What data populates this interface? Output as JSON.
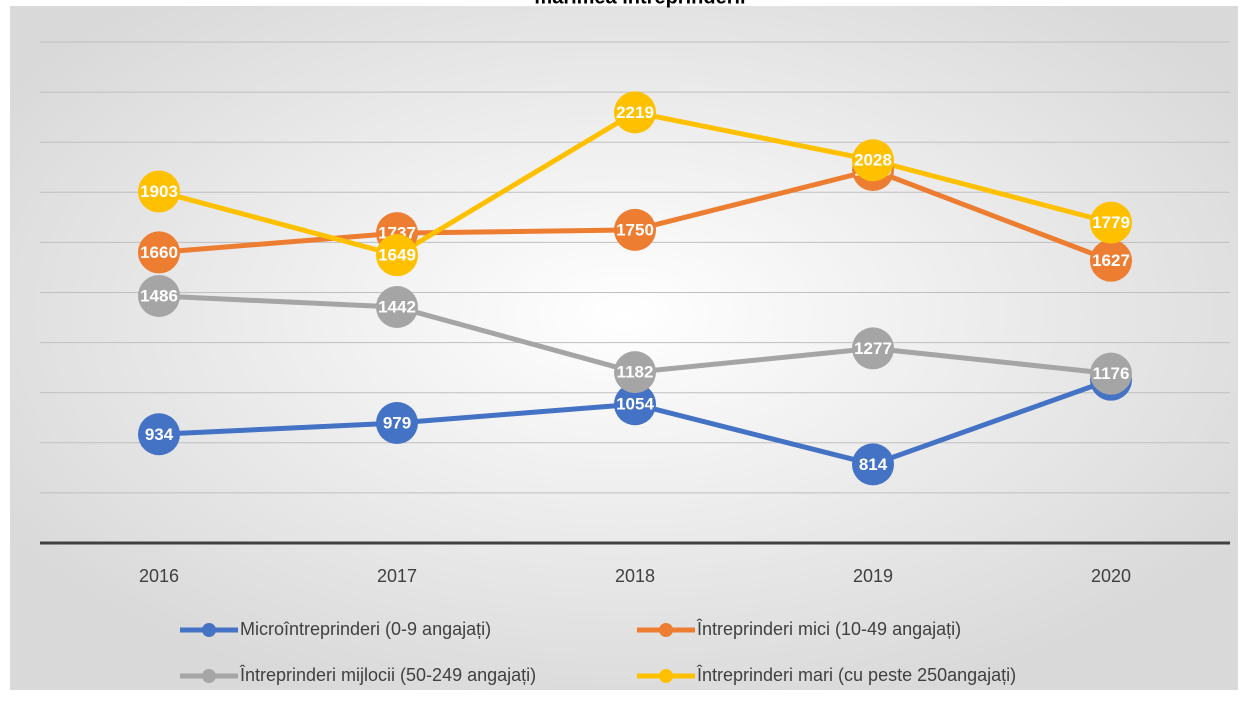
{
  "chart_data": {
    "type": "line",
    "title": "mărimea întreprinderii",
    "categories": [
      "2016",
      "2017",
      "2018",
      "2019",
      "2020"
    ],
    "series": [
      {
        "name": "Microîntreprinderi (0-9 angajați)",
        "color": "#4472c4",
        "values": [
          934,
          979,
          1054,
          814,
          1152
        ]
      },
      {
        "name": "Întreprinderi mici (10-49 angajați)",
        "color": "#ed7d31",
        "values": [
          1660,
          1737,
          1750,
          1989,
          1627
        ]
      },
      {
        "name": "Întreprinderi mijlocii (50-249 angajați)",
        "color": "#a5a5a5",
        "values": [
          1486,
          1442,
          1182,
          1277,
          1176
        ]
      },
      {
        "name": "Întreprinderi mari (cu peste 250angajați)",
        "color": "#ffc000",
        "values": [
          1903,
          1649,
          2219,
          2028,
          1779
        ]
      }
    ],
    "ylim": [
      500,
      2500
    ],
    "yticks": [
      500,
      700,
      900,
      1100,
      1300,
      1500,
      1700,
      1900,
      2100,
      2300,
      2500
    ],
    "grid": true,
    "legend": "bottom"
  }
}
